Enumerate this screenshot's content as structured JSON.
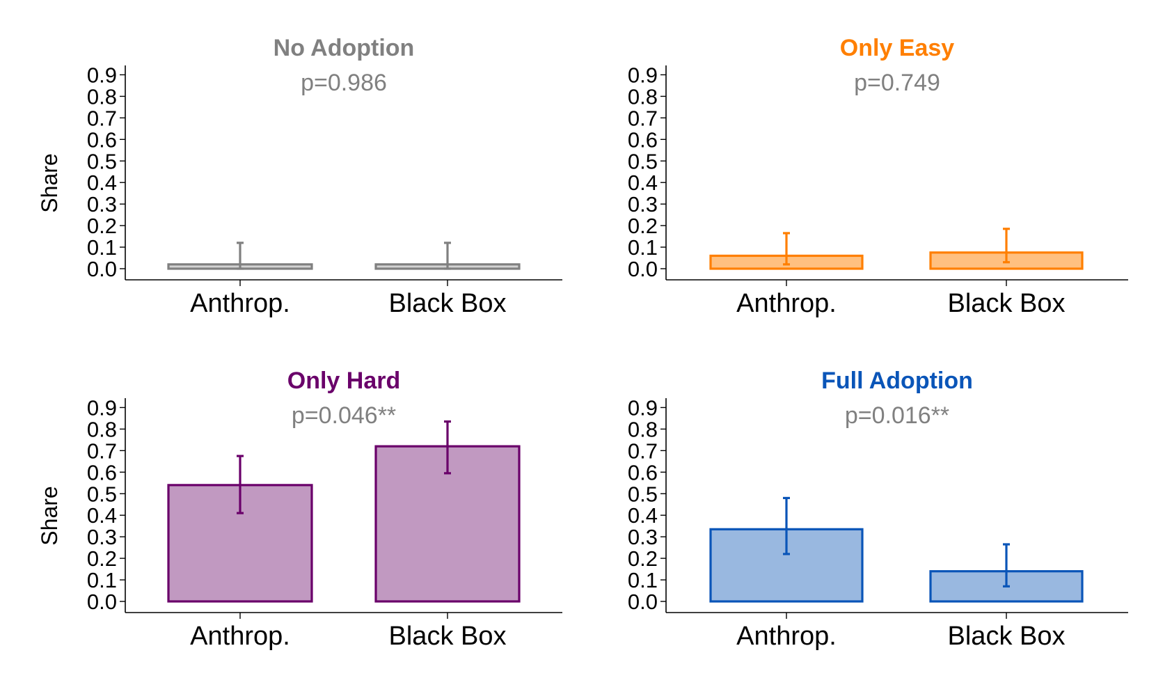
{
  "chart_data": [
    {
      "type": "bar",
      "title": "No Adoption",
      "title_color": "#808080",
      "annotation": "p=0.986",
      "ylabel": "Share",
      "categories": [
        "Anthrop.",
        "Black Box"
      ],
      "values": [
        0.02,
        0.02
      ],
      "error_low": [
        0.0,
        0.0
      ],
      "error_high": [
        0.12,
        0.12
      ],
      "ylim": [
        0.0,
        0.95
      ],
      "yticks": [
        "0.0",
        "0.1",
        "0.2",
        "0.3",
        "0.4",
        "0.5",
        "0.6",
        "0.7",
        "0.8",
        "0.9"
      ],
      "bar_edge": "#808080",
      "bar_fill": "#d3d3d3"
    },
    {
      "type": "bar",
      "title": "Only Easy",
      "title_color": "#ff7f00",
      "annotation": "p=0.749",
      "ylabel": "",
      "categories": [
        "Anthrop.",
        "Black Box"
      ],
      "values": [
        0.06,
        0.075
      ],
      "error_low": [
        0.02,
        0.03
      ],
      "error_high": [
        0.165,
        0.185
      ],
      "ylim": [
        0.0,
        0.95
      ],
      "yticks": [
        "0.0",
        "0.1",
        "0.2",
        "0.3",
        "0.4",
        "0.5",
        "0.6",
        "0.7",
        "0.8",
        "0.9"
      ],
      "bar_edge": "#ff7f00",
      "bar_fill": "#ffc080"
    },
    {
      "type": "bar",
      "title": "Only Hard",
      "title_color": "#6a006a",
      "annotation": "p=0.046**",
      "ylabel": "Share",
      "categories": [
        "Anthrop.",
        "Black Box"
      ],
      "values": [
        0.54,
        0.72
      ],
      "error_low": [
        0.41,
        0.595
      ],
      "error_high": [
        0.675,
        0.835
      ],
      "ylim": [
        0.0,
        0.95
      ],
      "yticks": [
        "0.0",
        "0.1",
        "0.2",
        "0.3",
        "0.4",
        "0.5",
        "0.6",
        "0.7",
        "0.8",
        "0.9"
      ],
      "bar_edge": "#6a006a",
      "bar_fill": "#c199c1"
    },
    {
      "type": "bar",
      "title": "Full Adoption",
      "title_color": "#0a55b8",
      "annotation": "p=0.016**",
      "ylabel": "",
      "categories": [
        "Anthrop.",
        "Black Box"
      ],
      "values": [
        0.335,
        0.14
      ],
      "error_low": [
        0.22,
        0.07
      ],
      "error_high": [
        0.48,
        0.265
      ],
      "ylim": [
        0.0,
        0.95
      ],
      "yticks": [
        "0.0",
        "0.1",
        "0.2",
        "0.3",
        "0.4",
        "0.5",
        "0.6",
        "0.7",
        "0.8",
        "0.9"
      ],
      "bar_edge": "#0a55b8",
      "bar_fill": "#99b8e0"
    }
  ]
}
